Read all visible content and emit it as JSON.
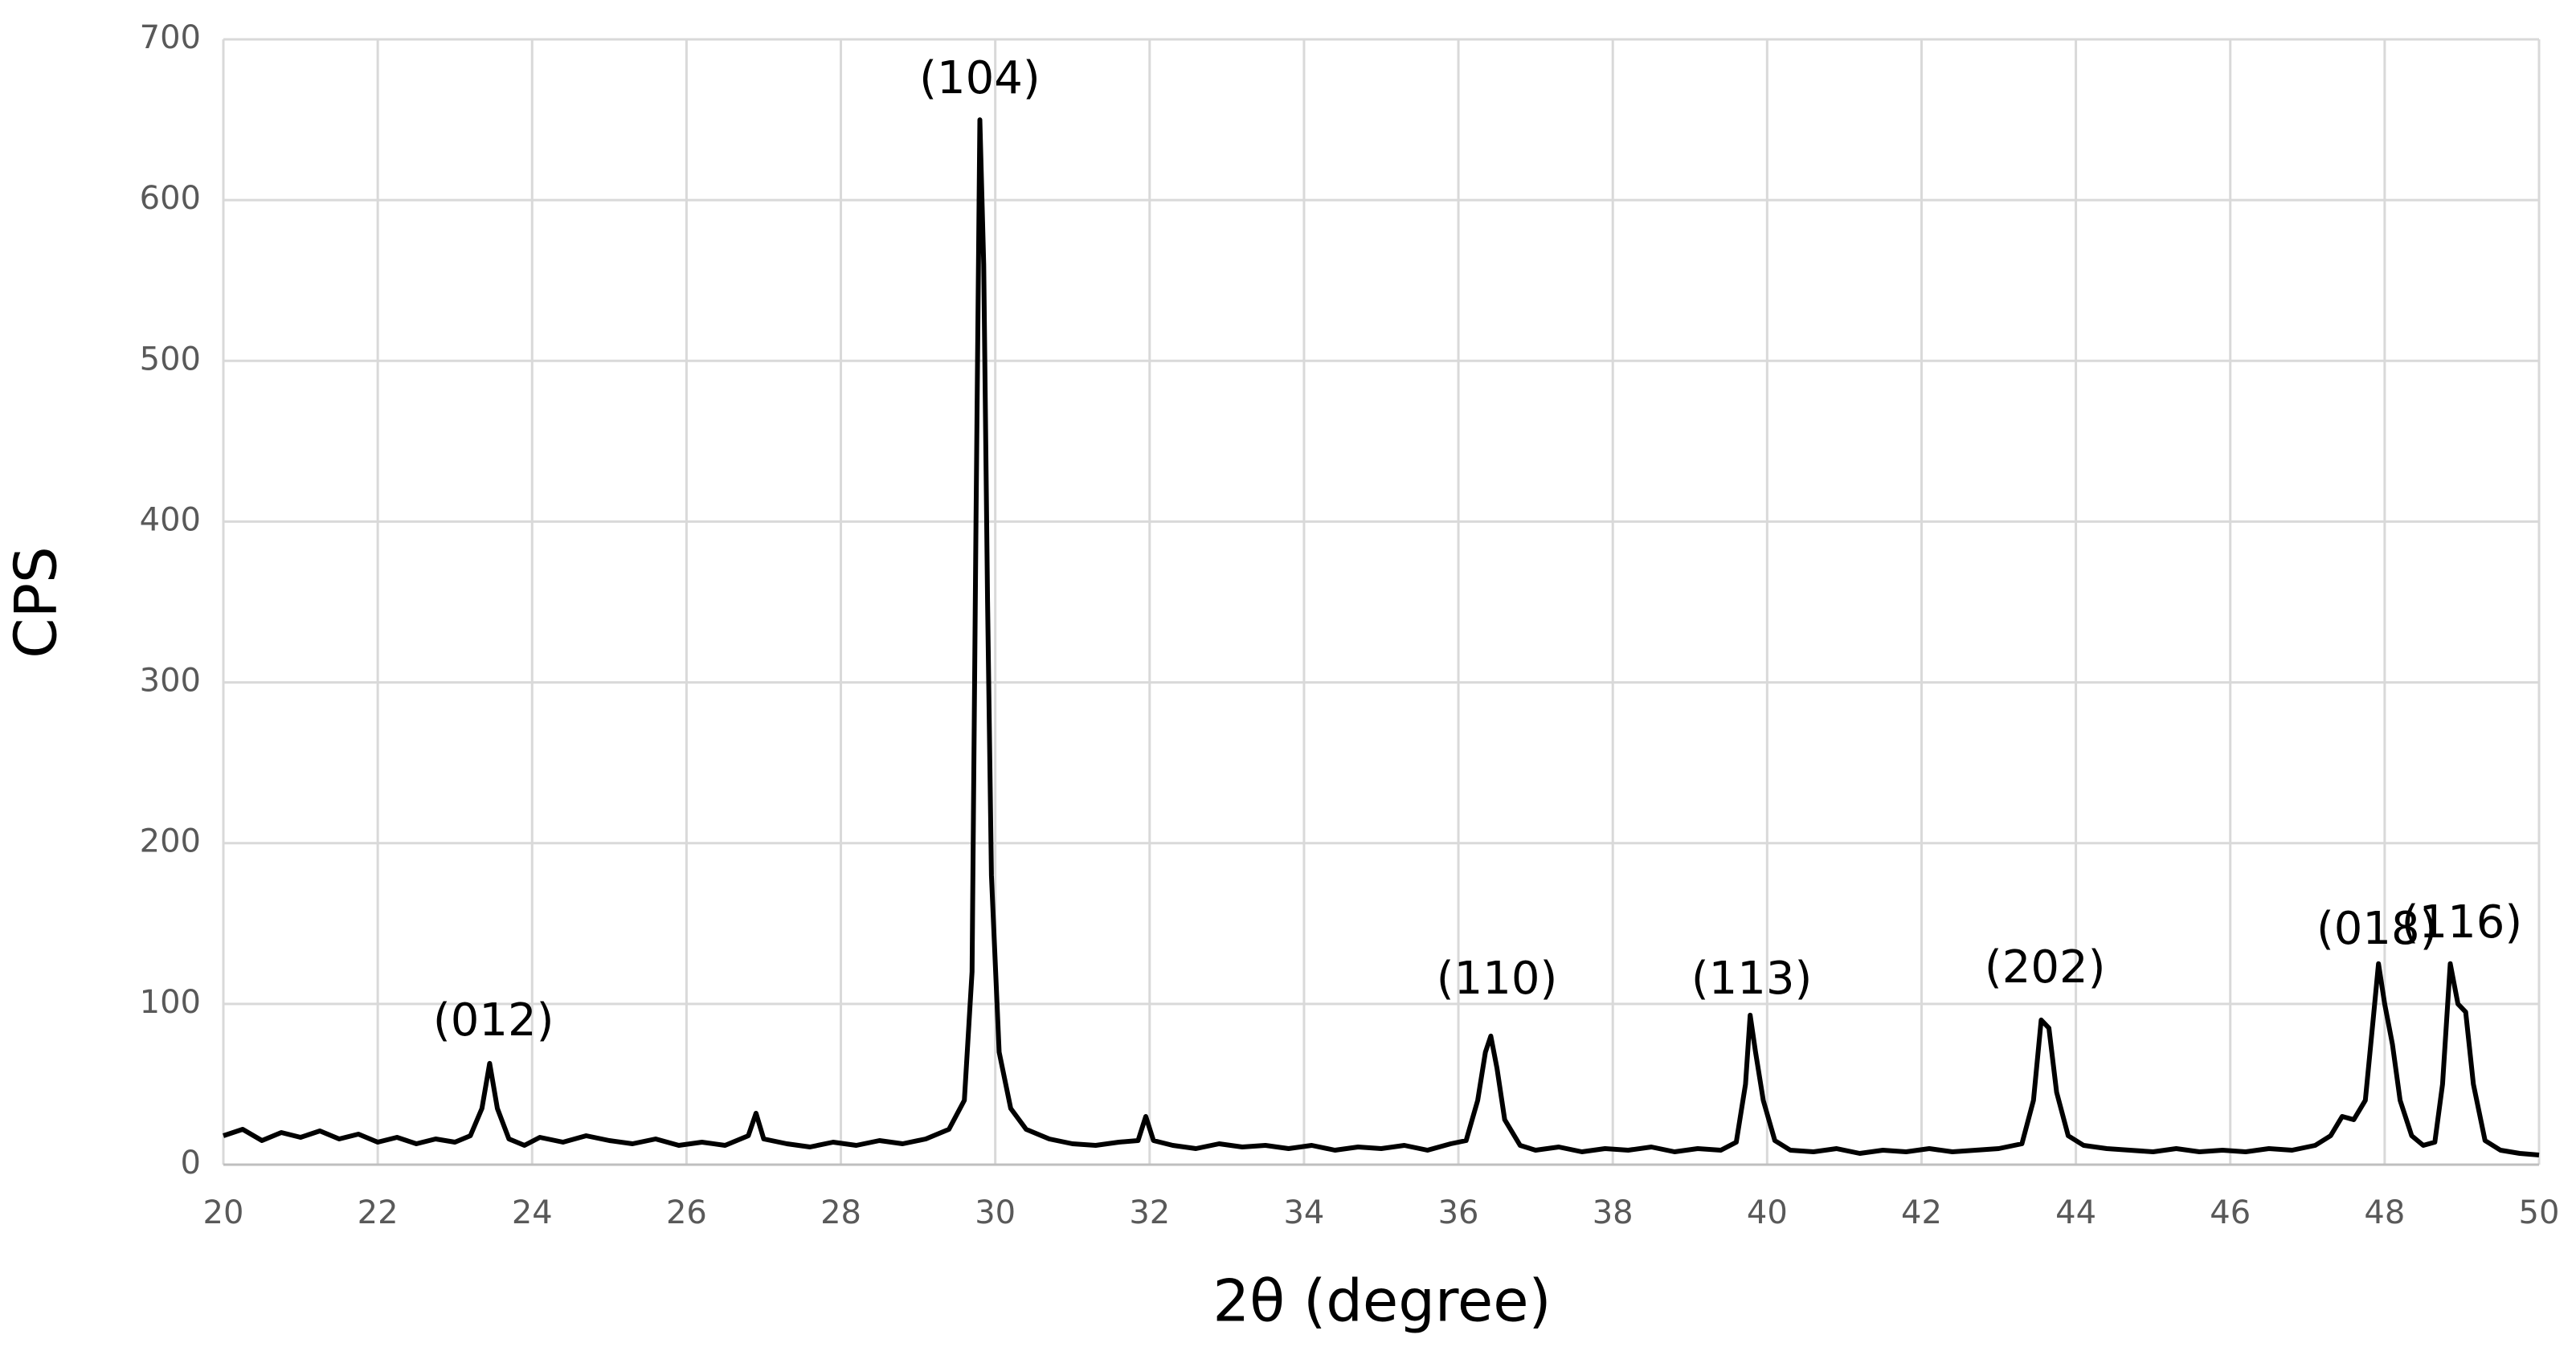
{
  "chart_data": {
    "type": "line",
    "x_label": "2θ (degree)",
    "y_label": "CPS",
    "xlim": [
      20,
      50
    ],
    "xticks": [
      20,
      22,
      24,
      26,
      28,
      30,
      32,
      34,
      36,
      38,
      40,
      42,
      44,
      46,
      48,
      50
    ],
    "ylim": [
      0,
      700
    ],
    "yticks": [
      0,
      100,
      200,
      300,
      400,
      500,
      600,
      700
    ],
    "grid": true,
    "series": [
      {
        "color": "#000000",
        "x": [
          20,
          20.25,
          20.5,
          20.75,
          21,
          21.25,
          21.5,
          21.75,
          22,
          22.25,
          22.5,
          22.75,
          23,
          23.2,
          23.35,
          23.45,
          23.55,
          23.7,
          23.9,
          24.1,
          24.4,
          24.7,
          25,
          25.3,
          25.6,
          25.9,
          26.2,
          26.5,
          26.8,
          26.9,
          27,
          27.3,
          27.6,
          27.9,
          28.2,
          28.5,
          28.8,
          29.1,
          29.4,
          29.6,
          29.7,
          29.75,
          29.8,
          29.85,
          29.9,
          29.95,
          30.05,
          30.2,
          30.4,
          30.7,
          31,
          31.3,
          31.6,
          31.85,
          31.95,
          32.05,
          32.3,
          32.6,
          32.9,
          33.2,
          33.5,
          33.8,
          34.1,
          34.4,
          34.7,
          35,
          35.3,
          35.6,
          35.9,
          36.1,
          36.25,
          36.35,
          36.42,
          36.5,
          36.6,
          36.8,
          37,
          37.3,
          37.6,
          37.9,
          38.2,
          38.5,
          38.8,
          39.1,
          39.4,
          39.6,
          39.72,
          39.78,
          39.85,
          39.95,
          40.1,
          40.3,
          40.6,
          40.9,
          41.2,
          41.5,
          41.8,
          42.1,
          42.4,
          42.7,
          43,
          43.3,
          43.45,
          43.55,
          43.65,
          43.75,
          43.9,
          44.1,
          44.4,
          44.7,
          45,
          45.3,
          45.6,
          45.9,
          46.2,
          46.5,
          46.8,
          47.1,
          47.3,
          47.45,
          47.6,
          47.75,
          47.85,
          47.92,
          48,
          48.1,
          48.2,
          48.35,
          48.5,
          48.65,
          48.75,
          48.85,
          48.95,
          49.05,
          49.15,
          49.3,
          49.5,
          49.75,
          50
        ],
        "values": [
          18,
          22,
          15,
          20,
          17,
          21,
          16,
          19,
          14,
          17,
          13,
          16,
          14,
          18,
          35,
          63,
          35,
          16,
          12,
          17,
          14,
          18,
          15,
          13,
          16,
          12,
          14,
          12,
          18,
          32,
          16,
          13,
          11,
          14,
          12,
          15,
          13,
          16,
          22,
          40,
          120,
          400,
          650,
          560,
          350,
          180,
          70,
          35,
          22,
          16,
          13,
          12,
          14,
          15,
          30,
          15,
          12,
          10,
          13,
          11,
          12,
          10,
          12,
          9,
          11,
          10,
          12,
          9,
          13,
          15,
          40,
          70,
          80,
          60,
          28,
          12,
          9,
          11,
          8,
          10,
          9,
          11,
          8,
          10,
          9,
          14,
          50,
          93,
          70,
          40,
          15,
          9,
          8,
          10,
          7,
          9,
          8,
          10,
          8,
          9,
          10,
          13,
          40,
          90,
          85,
          45,
          18,
          12,
          10,
          9,
          8,
          10,
          8,
          9,
          8,
          10,
          9,
          12,
          18,
          30,
          28,
          40,
          90,
          125,
          100,
          75,
          40,
          18,
          12,
          14,
          50,
          125,
          100,
          95,
          50,
          15,
          9,
          7,
          6
        ]
      }
    ],
    "annotations": [
      {
        "text": "(012)",
        "x": 23.5,
        "y": 88
      },
      {
        "text": "(104)",
        "x": 29.8,
        "y": 674
      },
      {
        "text": "(110)",
        "x": 36.5,
        "y": 114
      },
      {
        "text": "(113)",
        "x": 39.8,
        "y": 114
      },
      {
        "text": "(202)",
        "x": 43.6,
        "y": 121
      },
      {
        "text": "(018)",
        "x": 47.9,
        "y": 145
      },
      {
        "text": "(116)",
        "x": 49.0,
        "y": 149
      }
    ]
  }
}
